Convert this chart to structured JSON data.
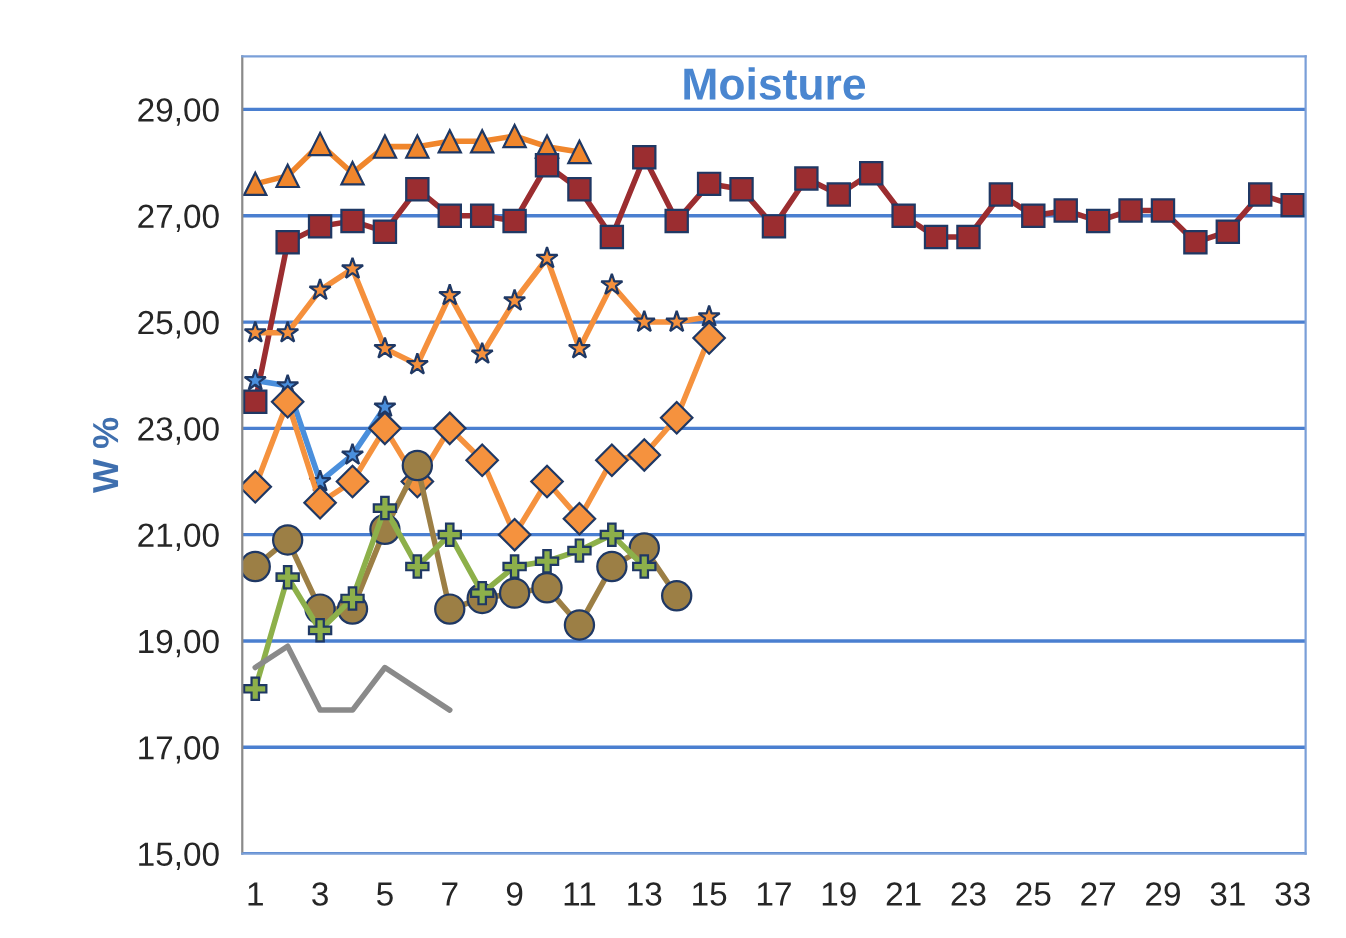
{
  "chart_data": {
    "type": "line",
    "title": "Moisture",
    "ylabel": "W %",
    "categories": [
      "1",
      null,
      "3",
      null,
      "5",
      null,
      "7",
      null,
      "9",
      null,
      "11",
      null,
      "13",
      null,
      "15",
      null,
      "17",
      null,
      "19",
      null,
      "21",
      null,
      "23",
      null,
      "25",
      null,
      "27",
      null,
      "29",
      null,
      "31",
      null,
      "33"
    ],
    "series": [
      {
        "color": "#f0862c",
        "marker": "triangle",
        "values": [
          27.6,
          27.75,
          28.35,
          27.8,
          28.3,
          28.3,
          28.4,
          28.4,
          28.5,
          28.3,
          28.2,
          null,
          null,
          null,
          null,
          null,
          null,
          null,
          null,
          null,
          null,
          null,
          null,
          null,
          null,
          null,
          null,
          null,
          null,
          null,
          null,
          null,
          null
        ]
      },
      {
        "color": "#9b2d30",
        "marker": "square",
        "values": [
          23.5,
          26.5,
          26.8,
          26.9,
          26.7,
          27.5,
          27.0,
          27.0,
          26.9,
          27.95,
          27.5,
          26.6,
          28.1,
          26.9,
          27.6,
          27.5,
          26.8,
          27.7,
          27.4,
          27.8,
          27.0,
          26.6,
          26.6,
          27.4,
          27.0,
          27.1,
          26.9,
          27.1,
          27.1,
          26.5,
          26.7,
          27.4,
          27.2
        ]
      },
      {
        "color": "#f5903c",
        "marker": "star",
        "values": [
          24.8,
          24.8,
          25.6,
          26.0,
          24.5,
          24.2,
          25.5,
          24.4,
          25.4,
          26.2,
          24.5,
          25.7,
          25.0,
          25.0,
          25.1,
          null,
          null,
          null,
          null,
          null,
          null,
          null,
          null,
          null,
          null,
          null,
          null,
          null,
          null,
          null,
          null,
          null,
          null
        ]
      },
      {
        "color": "#4a8fdc",
        "marker": "star",
        "values": [
          23.9,
          23.8,
          22.0,
          22.5,
          23.4,
          null,
          null,
          null,
          null,
          null,
          null,
          null,
          null,
          null,
          null,
          null,
          null,
          null,
          null,
          null,
          null,
          null,
          null,
          null,
          null,
          null,
          null,
          null,
          null,
          null,
          null,
          null,
          null
        ]
      },
      {
        "color": "#f5923e",
        "marker": "diamond",
        "values": [
          21.9,
          23.5,
          21.6,
          22.0,
          23.0,
          22.0,
          23.0,
          22.4,
          21.0,
          22.0,
          21.3,
          22.4,
          22.5,
          23.2,
          24.7,
          null,
          null,
          null,
          null,
          null,
          null,
          null,
          null,
          null,
          null,
          null,
          null,
          null,
          null,
          null,
          null,
          null,
          null
        ]
      },
      {
        "color": "#9c7f45",
        "marker": "circle",
        "values": [
          20.4,
          20.9,
          19.6,
          19.6,
          21.1,
          22.3,
          19.6,
          19.8,
          19.9,
          20.0,
          19.3,
          20.4,
          20.75,
          19.85,
          null,
          null,
          null,
          null,
          null,
          null,
          null,
          null,
          null,
          null,
          null,
          null,
          null,
          null,
          null,
          null,
          null,
          null,
          null
        ]
      },
      {
        "color": "#8db04a",
        "marker": "cross",
        "values": [
          18.1,
          20.2,
          19.2,
          19.8,
          21.5,
          20.4,
          21.0,
          19.9,
          20.4,
          20.5,
          20.7,
          21.0,
          20.4,
          null,
          null,
          null,
          null,
          null,
          null,
          null,
          null,
          null,
          null,
          null,
          null,
          null,
          null,
          null,
          null,
          null,
          null,
          null,
          null
        ]
      },
      {
        "color": "#8a8a8a",
        "marker": "none",
        "values": [
          18.5,
          18.9,
          17.7,
          17.7,
          18.5,
          18.1,
          17.7,
          null,
          null,
          null,
          null,
          null,
          null,
          null,
          null,
          null,
          null,
          null,
          null,
          null,
          null,
          null,
          null,
          null,
          null,
          null,
          null,
          null,
          null,
          null,
          null,
          null,
          null
        ]
      }
    ],
    "ylim": [
      15,
      30
    ],
    "yticks": [
      {
        "value": 15,
        "label": "15,00"
      },
      {
        "value": 17,
        "label": "17,00"
      },
      {
        "value": 19,
        "label": "19,00"
      },
      {
        "value": 21,
        "label": "21,00"
      },
      {
        "value": 23,
        "label": "23,00"
      },
      {
        "value": 25,
        "label": "25,00"
      },
      {
        "value": 27,
        "label": "27,00"
      },
      {
        "value": 29,
        "label": "29,00"
      }
    ],
    "grid": "y",
    "legend": false
  }
}
